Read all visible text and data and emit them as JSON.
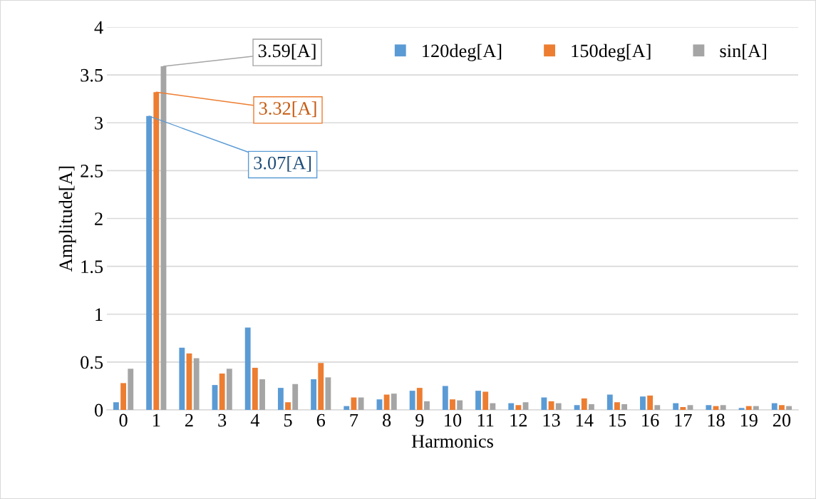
{
  "chart_data": {
    "type": "bar",
    "xlabel": "Harmonics",
    "ylabel": "Amplitude[A]",
    "categories": [
      "0",
      "1",
      "2",
      "3",
      "4",
      "5",
      "6",
      "7",
      "8",
      "9",
      "10",
      "11",
      "12",
      "13",
      "14",
      "15",
      "16",
      "17",
      "18",
      "19",
      "20"
    ],
    "series": [
      {
        "name": "120deg[A]",
        "color": "#5b9bd5",
        "values": [
          0.08,
          3.07,
          0.65,
          0.26,
          0.86,
          0.23,
          0.32,
          0.04,
          0.11,
          0.2,
          0.25,
          0.2,
          0.07,
          0.13,
          0.05,
          0.16,
          0.14,
          0.07,
          0.05,
          0.02,
          0.07
        ],
        "value_labels": [
          null,
          "3.07[A]",
          null,
          null,
          null,
          null,
          null,
          null,
          null,
          null,
          null,
          null,
          null,
          null,
          null,
          null,
          null,
          null,
          null,
          null,
          null
        ]
      },
      {
        "name": "150deg[A]",
        "color": "#ed7d31",
        "values": [
          0.28,
          3.32,
          0.59,
          0.38,
          0.44,
          0.08,
          0.49,
          0.13,
          0.16,
          0.23,
          0.11,
          0.19,
          0.05,
          0.09,
          0.12,
          0.08,
          0.15,
          0.03,
          0.04,
          0.04,
          0.05
        ],
        "value_labels": [
          null,
          "3.32[A]",
          null,
          null,
          null,
          null,
          null,
          null,
          null,
          null,
          null,
          null,
          null,
          null,
          null,
          null,
          null,
          null,
          null,
          null,
          null
        ]
      },
      {
        "name": "sin[A]",
        "color": "#a5a5a5",
        "values": [
          0.43,
          3.59,
          0.54,
          0.43,
          0.32,
          0.27,
          0.34,
          0.13,
          0.17,
          0.09,
          0.1,
          0.07,
          0.08,
          0.07,
          0.06,
          0.06,
          0.05,
          0.05,
          0.05,
          0.04,
          0.04
        ],
        "value_labels": [
          null,
          "3.59[A]",
          null,
          null,
          null,
          null,
          null,
          null,
          null,
          null,
          null,
          null,
          null,
          null,
          null,
          null,
          null,
          null,
          null,
          null,
          null
        ]
      }
    ],
    "ylim": [
      0,
      4
    ],
    "yticks": [
      0,
      0.5,
      1,
      1.5,
      2,
      2.5,
      3,
      3.5,
      4
    ],
    "grid": "y",
    "legend": "top right"
  }
}
